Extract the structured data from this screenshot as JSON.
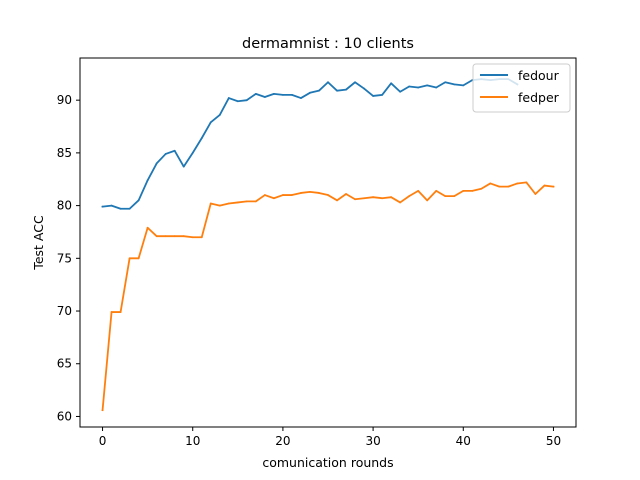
{
  "chart_data": {
    "type": "line",
    "title": "dermamnist : 10 clients",
    "xlabel": "comunication rounds",
    "ylabel": "Test ACC",
    "xlim": [
      -2.5,
      52.5
    ],
    "ylim": [
      59,
      94
    ],
    "xticks": [
      0,
      10,
      20,
      30,
      40,
      50
    ],
    "yticks": [
      60,
      65,
      70,
      75,
      80,
      85,
      90
    ],
    "grid": false,
    "legend_position": "top-right",
    "x": [
      0,
      1,
      2,
      3,
      4,
      5,
      6,
      7,
      8,
      9,
      10,
      11,
      12,
      13,
      14,
      15,
      16,
      17,
      18,
      19,
      20,
      21,
      22,
      23,
      24,
      25,
      26,
      27,
      28,
      29,
      30,
      31,
      32,
      33,
      34,
      35,
      36,
      37,
      38,
      39,
      40,
      41,
      42,
      43,
      44,
      45,
      46,
      47,
      48,
      49,
      50
    ],
    "series": [
      {
        "name": "fedour",
        "color": "#1f77b4",
        "values": [
          79.9,
          80.0,
          79.7,
          79.7,
          80.5,
          82.4,
          84.0,
          84.9,
          85.2,
          83.7,
          85.0,
          86.4,
          87.9,
          88.6,
          90.2,
          89.9,
          90.0,
          90.6,
          90.3,
          90.6,
          90.5,
          90.5,
          90.2,
          90.7,
          90.9,
          91.7,
          90.9,
          91.0,
          91.7,
          91.1,
          90.4,
          90.5,
          91.6,
          90.8,
          91.3,
          91.2,
          91.4,
          91.2,
          91.7,
          91.5,
          91.4,
          91.9,
          92.0,
          91.9,
          92.0,
          92.0,
          91.5,
          null,
          null,
          null,
          null
        ]
      },
      {
        "name": "fedper",
        "color": "#ff7f0e",
        "values": [
          60.6,
          69.9,
          69.9,
          75.0,
          75.0,
          77.9,
          77.1,
          77.1,
          77.1,
          77.1,
          77.0,
          77.0,
          80.2,
          80.0,
          80.2,
          80.3,
          80.4,
          80.4,
          81.0,
          80.7,
          81.0,
          81.0,
          81.2,
          81.3,
          81.2,
          81.0,
          80.5,
          81.1,
          80.6,
          80.7,
          80.8,
          80.7,
          80.8,
          80.3,
          80.9,
          81.4,
          80.5,
          81.4,
          80.9,
          80.9,
          81.4,
          81.4,
          81.6,
          82.1,
          81.8,
          81.8,
          82.1,
          82.2,
          81.1,
          81.9,
          81.8
        ]
      }
    ]
  }
}
